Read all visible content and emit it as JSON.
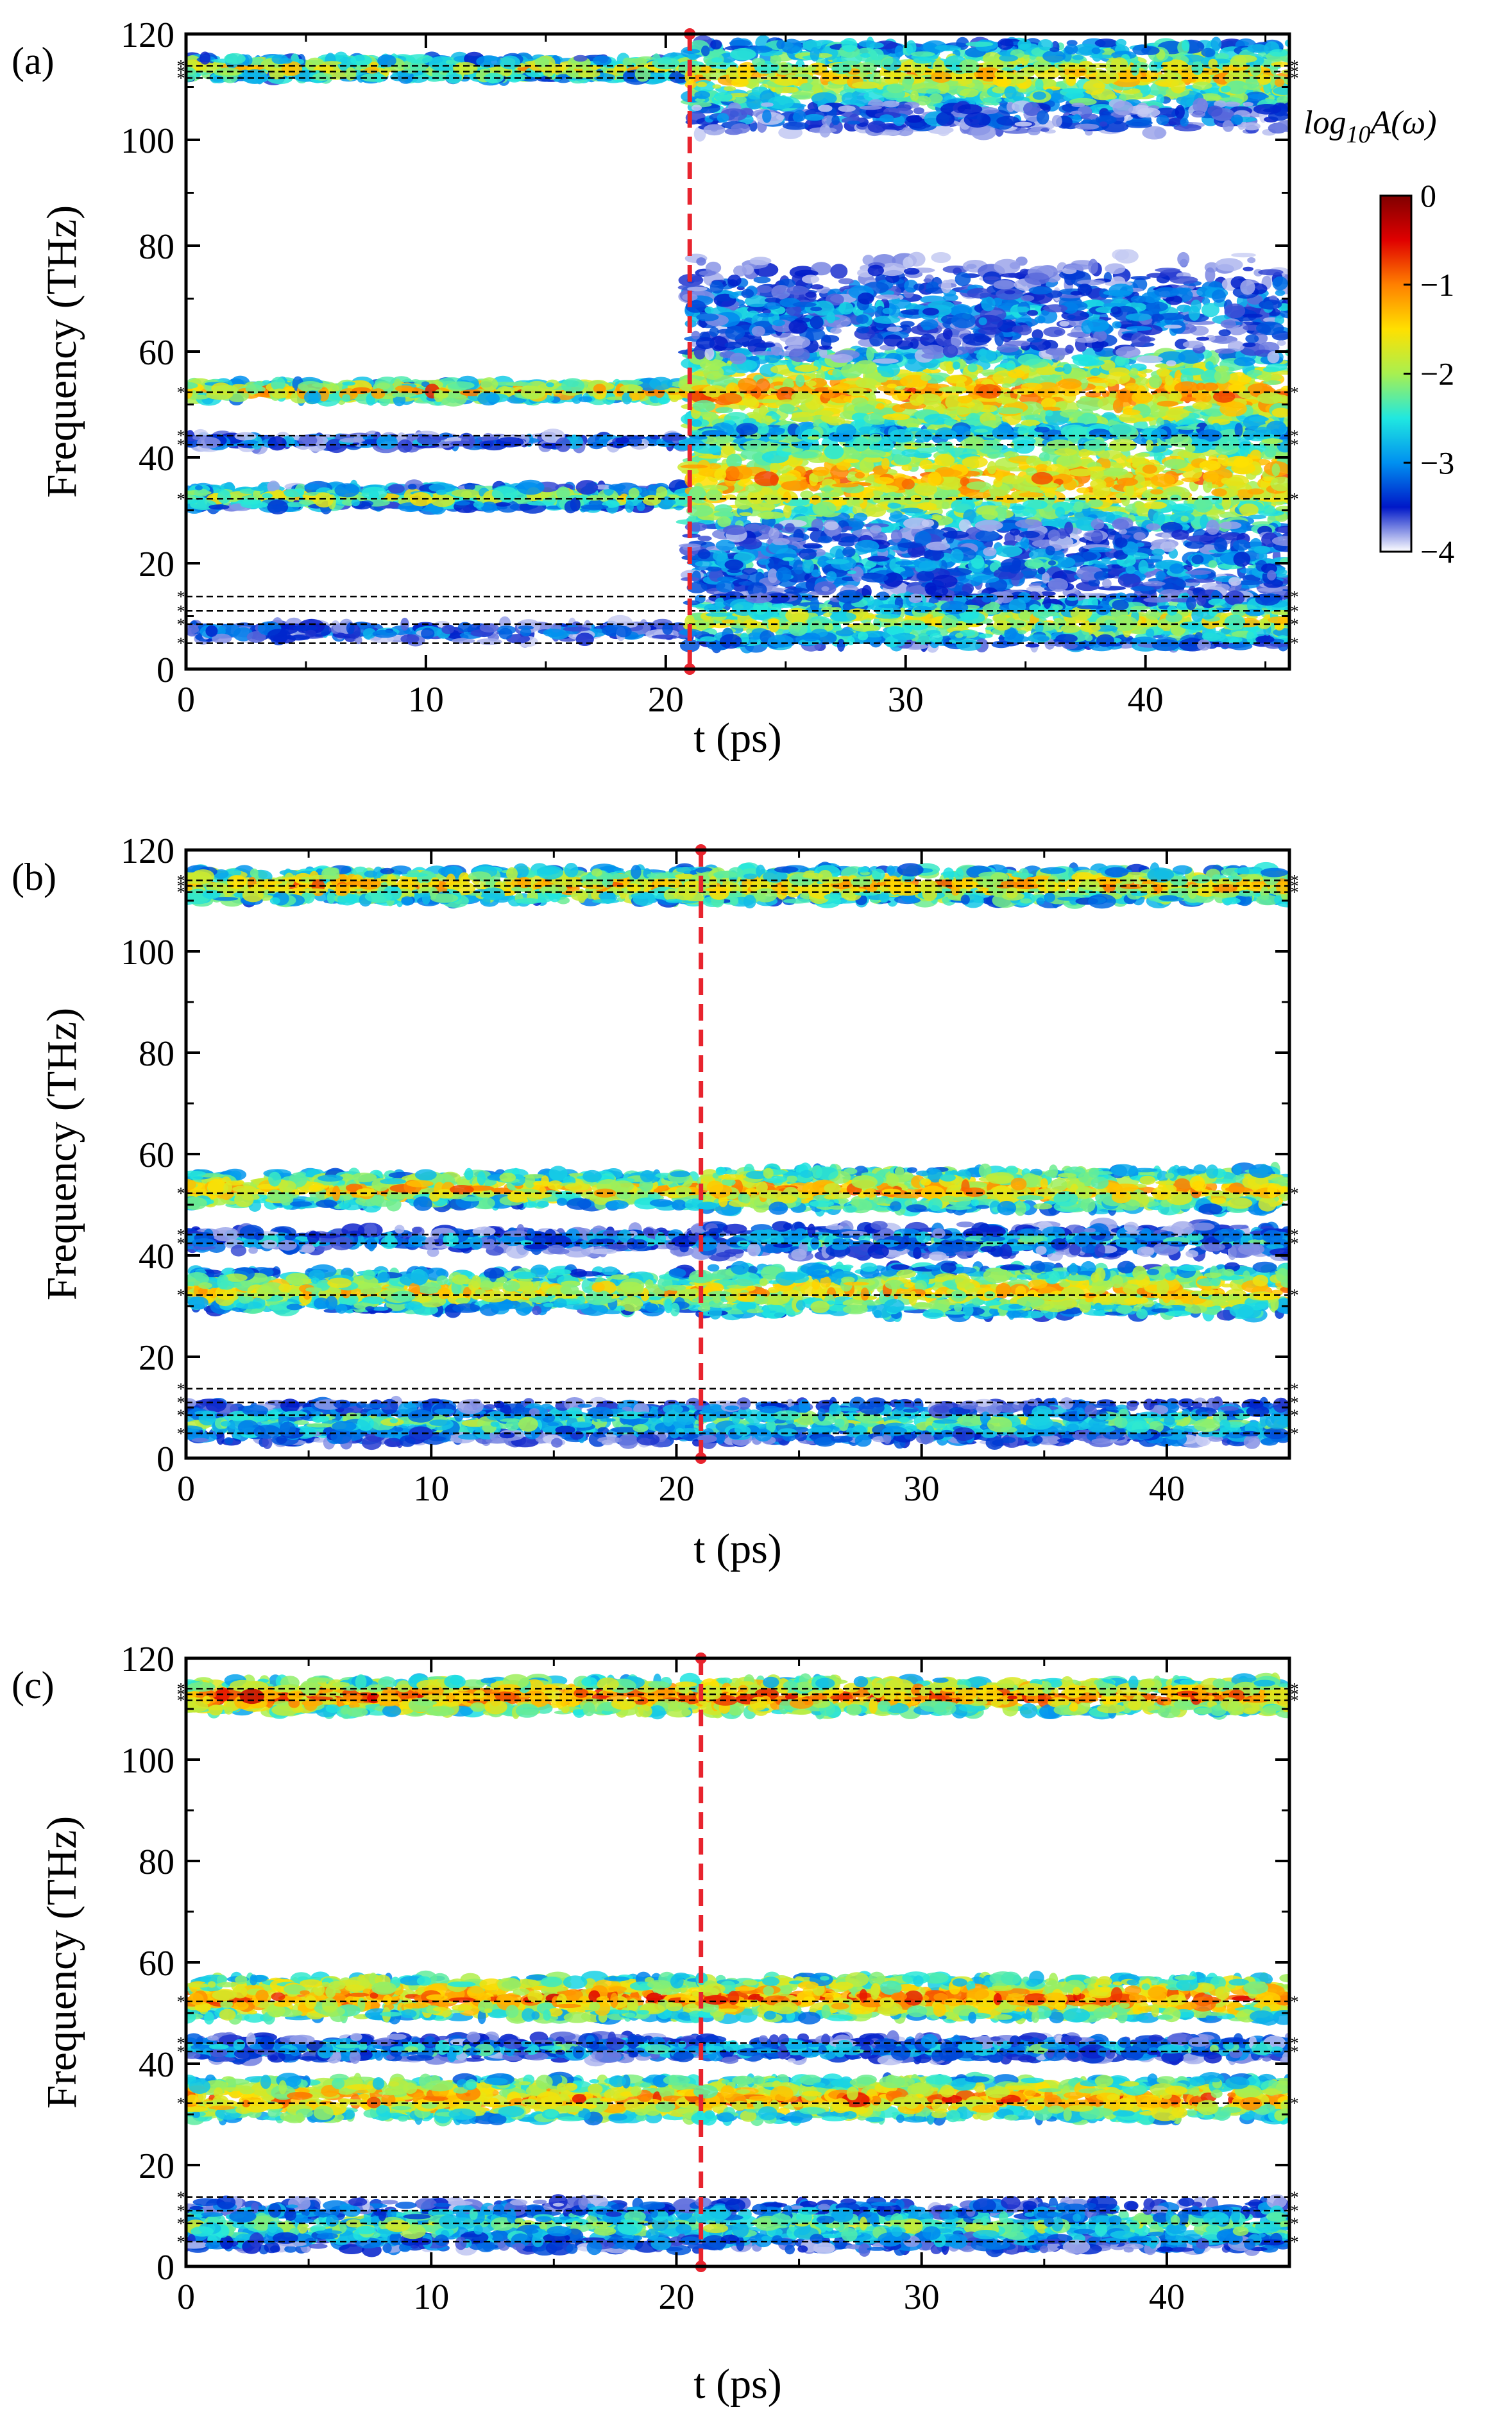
{
  "figure": {
    "colorbar": {
      "label_prefix": "log",
      "label_sub": "10",
      "label_suffix": "A(ω)",
      "range": [
        -4,
        0
      ],
      "ticks": [
        0,
        -1,
        -2,
        -3,
        -4
      ],
      "tick_labels": [
        "0",
        "−1",
        "−2",
        "−3",
        "−4"
      ],
      "colors": [
        "#ffffff",
        "#0018c8",
        "#0090f0",
        "#20e8e0",
        "#a8f050",
        "#ffe000",
        "#ff8000",
        "#e00000",
        "#800000"
      ]
    },
    "annotation_color": "#e8242e",
    "reference_line_color": "#000000"
  },
  "chart_data": [
    {
      "type": "heatmap",
      "panel_label": "(a)",
      "xlabel": "t (ps)",
      "ylabel": "Frequency (THz)",
      "xlim": [
        0,
        46
      ],
      "ylim": [
        0,
        120
      ],
      "xticks": [
        0,
        10,
        20,
        30,
        40
      ],
      "yticks": [
        0,
        20,
        40,
        60,
        80,
        100,
        120
      ],
      "event_time_ps": 21,
      "reference_frequencies_THz": [
        4.9,
        8.5,
        11.0,
        13.7,
        32.2,
        42.4,
        44.1,
        52.3,
        111.7,
        112.9,
        114.0
      ],
      "bands_before_event": [
        {
          "center": 113.5,
          "width": 2.5,
          "intensity": -1.5
        },
        {
          "center": 52.5,
          "width": 2.0,
          "intensity": -1.2
        },
        {
          "center": 43.0,
          "width": 1.5,
          "intensity": -3.0
        },
        {
          "center": 32.5,
          "width": 2.5,
          "intensity": -1.8
        },
        {
          "center": 7.0,
          "width": 3.0,
          "intensity": -3.2
        }
      ],
      "bands_after_event": [
        {
          "center": 112.0,
          "width": 8.0,
          "intensity": -1.5
        },
        {
          "center": 104.0,
          "width": 5.0,
          "intensity": -3.3
        },
        {
          "center": 52.0,
          "width": 10.0,
          "intensity": -1.2
        },
        {
          "center": 36.0,
          "width": 12.0,
          "intensity": -1.3
        },
        {
          "center": 68.0,
          "width": 14.0,
          "intensity": -3.0
        },
        {
          "center": 20.0,
          "width": 10.0,
          "intensity": -2.8
        },
        {
          "center": 9.0,
          "width": 6.0,
          "intensity": -1.8
        }
      ]
    },
    {
      "type": "heatmap",
      "panel_label": "(b)",
      "xlabel": "t (ps)",
      "ylabel": "Frequency (THz)",
      "xlim": [
        0,
        45
      ],
      "ylim": [
        0,
        120
      ],
      "xticks": [
        0,
        10,
        20,
        30,
        40
      ],
      "yticks": [
        0,
        20,
        40,
        60,
        80,
        100,
        120
      ],
      "event_time_ps": 21,
      "reference_frequencies_THz": [
        4.9,
        8.5,
        11.0,
        13.7,
        32.2,
        42.4,
        44.1,
        52.3,
        111.7,
        112.9,
        114.0
      ],
      "bands_before_event": [
        {
          "center": 113.0,
          "width": 4.0,
          "intensity": -1.3
        },
        {
          "center": 53.0,
          "width": 4.0,
          "intensity": -1.3
        },
        {
          "center": 43.0,
          "width": 3.0,
          "intensity": -2.8
        },
        {
          "center": 33.0,
          "width": 5.0,
          "intensity": -1.5
        },
        {
          "center": 7.0,
          "width": 5.0,
          "intensity": -2.3
        }
      ],
      "bands_after_event": [
        {
          "center": 113.0,
          "width": 4.0,
          "intensity": -1.3
        },
        {
          "center": 53.0,
          "width": 5.0,
          "intensity": -1.2
        },
        {
          "center": 43.0,
          "width": 4.0,
          "intensity": -2.6
        },
        {
          "center": 33.0,
          "width": 6.0,
          "intensity": -1.4
        },
        {
          "center": 7.0,
          "width": 5.0,
          "intensity": -2.2
        }
      ]
    },
    {
      "type": "heatmap",
      "panel_label": "(c)",
      "xlabel": "t (ps)",
      "ylabel": "Frequency (THz)",
      "xlim": [
        0,
        45
      ],
      "ylim": [
        0,
        120
      ],
      "xticks": [
        0,
        10,
        20,
        30,
        40
      ],
      "yticks": [
        0,
        20,
        40,
        60,
        80,
        100,
        120
      ],
      "event_time_ps": 21,
      "reference_frequencies_THz": [
        4.9,
        8.5,
        11.0,
        13.7,
        32.2,
        42.4,
        44.1,
        52.3,
        111.7,
        112.9,
        114.0
      ],
      "bands_before_event": [
        {
          "center": 112.5,
          "width": 4.0,
          "intensity": -0.9
        },
        {
          "center": 53.0,
          "width": 5.0,
          "intensity": -1.0
        },
        {
          "center": 43.0,
          "width": 3.0,
          "intensity": -2.6
        },
        {
          "center": 33.0,
          "width": 5.0,
          "intensity": -1.1
        },
        {
          "center": 8.0,
          "width": 6.0,
          "intensity": -2.2
        }
      ],
      "bands_after_event": [
        {
          "center": 112.5,
          "width": 4.0,
          "intensity": -0.9
        },
        {
          "center": 53.0,
          "width": 5.0,
          "intensity": -1.0
        },
        {
          "center": 43.0,
          "width": 3.0,
          "intensity": -2.6
        },
        {
          "center": 33.0,
          "width": 5.0,
          "intensity": -1.1
        },
        {
          "center": 8.0,
          "width": 6.0,
          "intensity": -2.2
        }
      ]
    }
  ]
}
